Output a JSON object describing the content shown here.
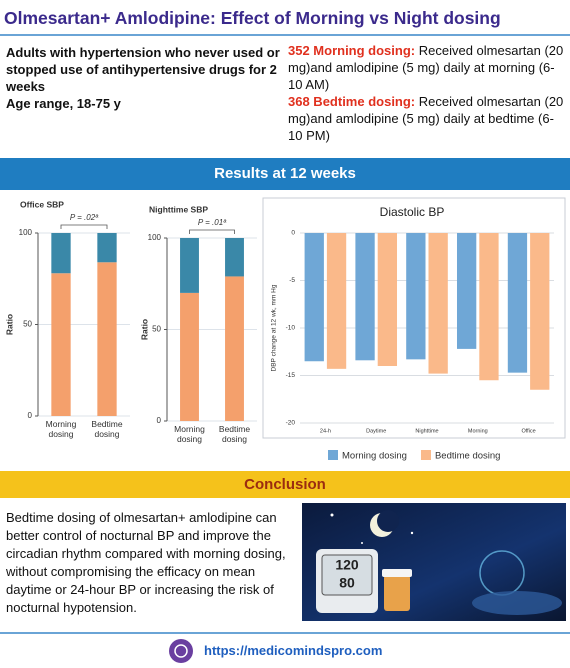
{
  "header": {
    "title": "Olmesartan+ Amlodipine: Effect of Morning vs Night dosing"
  },
  "population": [
    "Adults with hypertension who never used or stopped use of antihypertensive drugs for 2 weeks",
    "Age range, 18-75 y"
  ],
  "arms": [
    {
      "label": "352 Morning dosing:",
      "text": "Received olmesartan (20 mg)and amlodipine (5 mg) daily at morning (6-10 AM)"
    },
    {
      "label": "368 Bedtime dosing:",
      "text": "Received olmesartan (20 mg)and amlodipine (5 mg) daily at bedtime (6-10 PM)"
    }
  ],
  "results_heading": "Results at 12 weeks",
  "chart_data": [
    {
      "type": "stacked-bar",
      "title": "Office SBP",
      "annotation": "P = .02ª",
      "y_label": "Ratio",
      "categories": [
        "Morning dosing",
        "Bedtime dosing"
      ],
      "series": [
        {
          "color": "#f4a06c",
          "values": [
            78,
            84
          ]
        },
        {
          "color": "#3a88a8",
          "values": [
            22,
            16
          ]
        }
      ],
      "ylim": [
        0,
        100
      ],
      "yticks": [
        0,
        50,
        100
      ],
      "grid": true
    },
    {
      "type": "stacked-bar",
      "title": "Nighttime SBP",
      "annotation": "P = .01ª",
      "y_label": "Ratio",
      "categories": [
        "Morning dosing",
        "Bedtime dosing"
      ],
      "series": [
        {
          "color": "#f4a06c",
          "values": [
            70,
            79
          ]
        },
        {
          "color": "#3a88a8",
          "values": [
            30,
            21
          ]
        }
      ],
      "ylim": [
        0,
        100
      ],
      "yticks": [
        0,
        50,
        100
      ],
      "grid": true
    },
    {
      "type": "grouped-bar",
      "title": "Diastolic BP",
      "y_label": "DBP change at 12 wk, mm Hg",
      "categories": [
        "24-h",
        "Daytime",
        "Nighttime",
        "Morning",
        "Office"
      ],
      "series": [
        {
          "name": "Morning dosing",
          "color": "#6fa7d6",
          "values": [
            -13.5,
            -13.4,
            -13.3,
            -12.2,
            -14.7
          ]
        },
        {
          "name": "Bedtime dosing",
          "color": "#fab98a",
          "values": [
            -14.3,
            -14.0,
            -14.8,
            -15.5,
            -16.5
          ]
        }
      ],
      "ylim": [
        -20,
        0
      ],
      "yticks": [
        0,
        -5,
        -10,
        -15,
        -20
      ],
      "grid": true,
      "legend": "bottom"
    }
  ],
  "conclusion": {
    "heading": "Conclusion",
    "text": "Bedtime dosing of olmesartan+ amlodipine can better control of nocturnal BP and improve the circadian rhythm compared with morning dosing, without compromising the efficacy on mean daytime or 24-hour BP or increasing the risk of nocturnal hypotension."
  },
  "image": {
    "readings": [
      "120",
      "80"
    ]
  },
  "footer": {
    "url": "https://medicomindspro.com"
  }
}
